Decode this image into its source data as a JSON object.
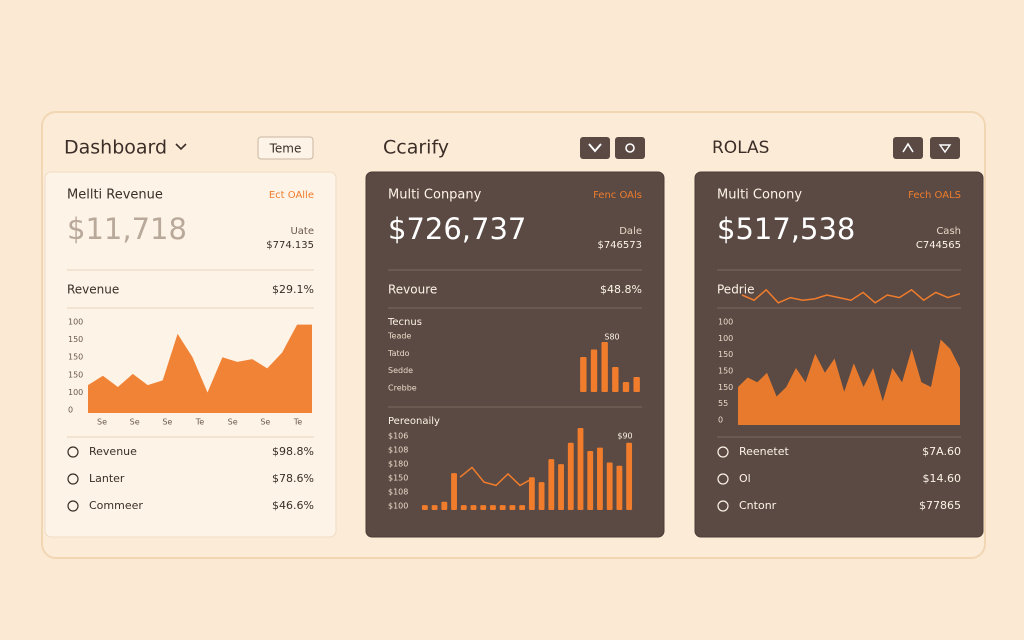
{
  "header": {
    "title": "Dashboard",
    "button": "Teme",
    "center_title": "Ccarify",
    "right_title": "ROLAS"
  },
  "cards": [
    {
      "theme": "light",
      "title": "Mellti Revenue",
      "link": "Ect OAlle",
      "big_value": "$11,718",
      "side_label": "Uate",
      "side_value": "$774.135",
      "row_label": "Revenue",
      "row_value": "$29.1%",
      "charts": [
        {
          "type": "area",
          "ylim": [
            0,
            100
          ],
          "ylabels": [
            "100",
            "150",
            "150",
            "150",
            "100",
            "0"
          ],
          "xlabels": [
            "Se",
            "Se",
            "Se",
            "Te",
            "Se",
            "Se",
            "Te"
          ],
          "values": [
            30,
            40,
            28,
            42,
            30,
            35,
            85,
            60,
            22,
            60,
            55,
            58,
            48,
            65,
            95,
            95
          ]
        }
      ],
      "items": [
        {
          "label": "Revenue",
          "value": "$98.8%"
        },
        {
          "label": "Lanter",
          "value": "$78.6%"
        },
        {
          "label": "Commeer",
          "value": "$46.6%"
        }
      ]
    },
    {
      "theme": "dark",
      "title": "Multi Conpany",
      "link": "Fenc OAls",
      "big_value": "$726,737",
      "side_label": "Dale",
      "side_value": "$746573",
      "row_label": "Revoure",
      "row_value": "$48.8%",
      "charts": [
        {
          "type": "bar",
          "title": "Tecnus",
          "note": "S80",
          "ylim": [
            0,
            100
          ],
          "ylabels": [
            "Teade",
            "Tatdo",
            "Sedde",
            "Crebbe"
          ],
          "values": [
            70,
            85,
            100,
            50,
            20,
            30
          ]
        },
        {
          "type": "bar",
          "title": "Pereonaily",
          "note": "$90",
          "ylim": [
            0,
            100
          ],
          "ylabels": [
            "$106",
            "$108",
            "$180",
            "$150",
            "$108",
            "$100"
          ],
          "values": [
            6,
            6,
            10,
            45,
            6,
            6,
            6,
            6,
            6,
            6,
            6,
            40,
            34,
            62,
            56,
            82,
            100,
            72,
            76,
            58,
            54,
            82
          ],
          "overlay": [
            40,
            52,
            34,
            30,
            44,
            30,
            38
          ]
        }
      ],
      "items": []
    },
    {
      "theme": "dark",
      "title": "Multi Conony",
      "link": "Fech OALS",
      "big_value": "$517,538",
      "side_label": "Cash",
      "side_value": "C744565",
      "row_label": "Pedrie",
      "row_chart": {
        "type": "line",
        "ylim": [
          0,
          100
        ],
        "values": [
          50,
          30,
          70,
          20,
          40,
          30,
          35,
          50,
          40,
          30,
          60,
          20,
          50,
          40,
          70,
          30,
          60,
          40,
          55
        ]
      },
      "charts": [
        {
          "type": "area",
          "ylim": [
            0,
            100
          ],
          "ylabels": [
            "100",
            "100",
            "150",
            "150",
            "150",
            "55",
            "0"
          ],
          "values": [
            40,
            50,
            45,
            55,
            30,
            40,
            60,
            45,
            75,
            55,
            70,
            35,
            65,
            40,
            60,
            25,
            60,
            45,
            80,
            45,
            40,
            90,
            80,
            60
          ]
        }
      ],
      "items": [
        {
          "label": "Reenetet",
          "value": "$7A.60"
        },
        {
          "label": "Ol",
          "value": "$14.60"
        },
        {
          "label": "Cntonr",
          "value": "$77865"
        }
      ]
    }
  ]
}
